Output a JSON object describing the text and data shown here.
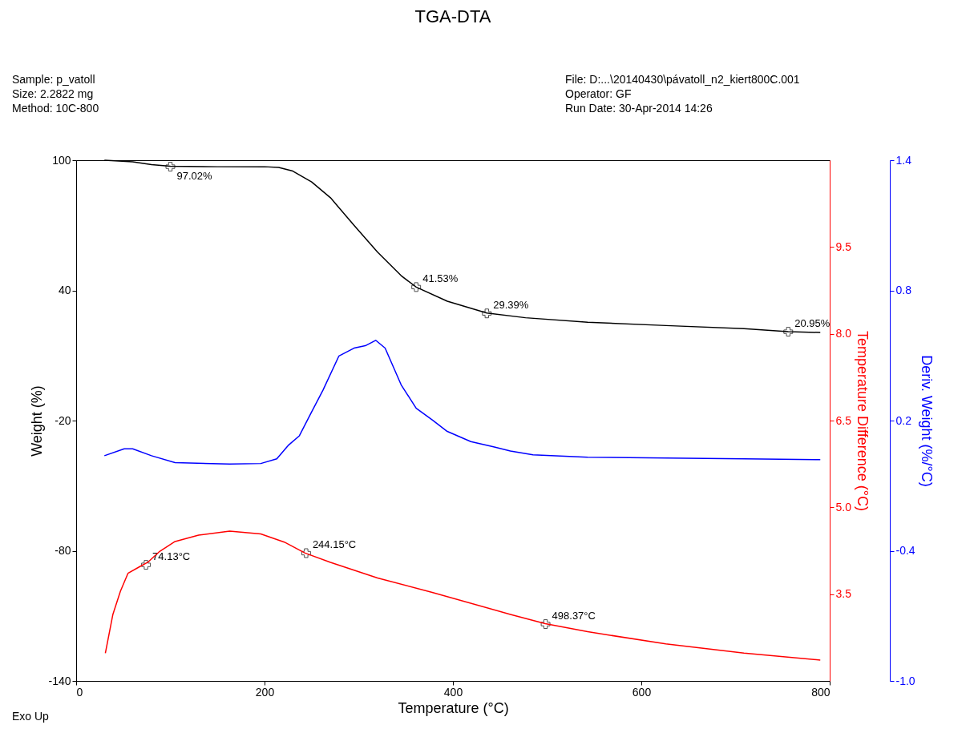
{
  "chart_data": {
    "type": "line",
    "title": "TGA-DTA",
    "xlabel": "Temperature (°C)",
    "ylabel": "Weight (%)",
    "y2label": "Temperature Difference (°C)",
    "y3label": "Deriv. Weight (%/°C)",
    "annotations": [
      "Sample: p_vatoll",
      "Size:  2.2822 mg",
      "Method: 10C-800",
      "File: D:...\\20140430\\pávatoll_n2_kiert800C.001",
      "Operator: GF",
      "Run Date: 30-Apr-2014 14:26",
      "Exo Up",
      {
        "text": "97.02%",
        "x": 100,
        "y": 97.02
      },
      {
        "text": "41.53%",
        "x": 361,
        "y": 41.53
      },
      {
        "text": "29.39%",
        "x": 436,
        "y": 29.39
      },
      {
        "text": "20.95%",
        "x": 756,
        "y": 20.95
      },
      {
        "text": "74.13°C",
        "x": 74.13,
        "y": -86.5
      },
      {
        "text": "244.15°C",
        "x": 244.15,
        "y": -81.1
      },
      {
        "text": "498.37°C",
        "x": 498.37,
        "y": -113.8
      }
    ],
    "xlim": [
      0,
      800
    ],
    "xticks": [
      0,
      200,
      400,
      600,
      800
    ],
    "ylim": [
      -140,
      100
    ],
    "yticks": [
      -140,
      -80,
      -20,
      40,
      100
    ],
    "y2lim": [
      2,
      11
    ],
    "y2ticks": [
      3.5,
      {
        "value": 5,
        "label": "5.0"
      },
      6.5,
      {
        "value": 8,
        "label": "8.0"
      },
      9.5
    ],
    "y3lim": [
      -1,
      1.4
    ],
    "y3ticks": [
      {
        "value": -1,
        "label": "-1.0"
      },
      -0.4,
      0.2,
      0.8,
      1.4
    ],
    "grid": false,
    "line_style": "solid",
    "marker": "none",
    "series": [
      {
        "color": "#000000",
        "axis": "y",
        "x": [
          30,
          60,
          80,
          100,
          150,
          200,
          215,
          230,
          250,
          270,
          295,
          320,
          345,
          361,
          394,
          436,
          477,
          543,
          626,
          709,
          756,
          790
        ],
        "values": [
          100,
          99.3,
          98,
          97.2,
          97,
          97,
          96.7,
          95,
          90,
          82.7,
          70,
          57.6,
          46.8,
          41.5,
          35,
          29.6,
          27.4,
          25.3,
          23.8,
          22.4,
          20.95,
          20.6
        ]
      },
      {
        "color": "#ff0000",
        "axis": "y2",
        "x": [
          31,
          39,
          47,
          55,
          68,
          76,
          88,
          105,
          130,
          163,
          196,
          221,
          243,
          270,
          320,
          378,
          461,
          498,
          543,
          626,
          709,
          790
        ],
        "values": [
          2.48,
          3.15,
          3.55,
          3.86,
          3.98,
          4.05,
          4.23,
          4.41,
          4.52,
          4.59,
          4.54,
          4.4,
          4.21,
          4.05,
          3.78,
          3.53,
          3.15,
          2.99,
          2.85,
          2.64,
          2.48,
          2.36
        ]
      },
      {
        "color": "#0000ff",
        "axis": "y3",
        "x": [
          30,
          51,
          60,
          80,
          105,
          163,
          196,
          213,
          225,
          237,
          250,
          262,
          279,
          295,
          307,
          318,
          328,
          345,
          361,
          378,
          394,
          419,
          444,
          461,
          485,
          543,
          626,
          709,
          790
        ],
        "values": [
          0.038,
          0.07,
          0.07,
          0.038,
          0.006,
          0.0,
          0.002,
          0.024,
          0.085,
          0.13,
          0.24,
          0.34,
          0.498,
          0.534,
          0.545,
          0.57,
          0.534,
          0.365,
          0.257,
          0.203,
          0.15,
          0.103,
          0.078,
          0.06,
          0.042,
          0.031,
          0.027,
          0.024,
          0.02
        ]
      }
    ]
  }
}
